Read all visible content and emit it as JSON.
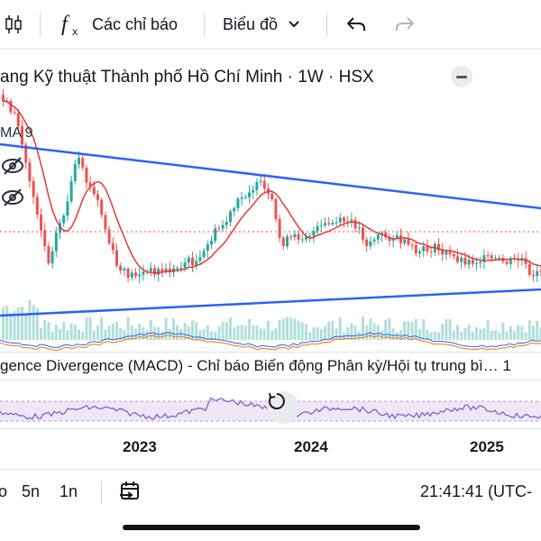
{
  "toolbar": {
    "indicators_label": "Các chỉ báo",
    "chart_type_label": "Biểu đồ"
  },
  "legend": {
    "title": "ang Kỹ thuật Thành phố Hồ Chí Minh · 1W · HSX",
    "ma_label": "MA 9"
  },
  "macd": {
    "label": "gence Divergence (MACD) - Chỉ báo Biến động Phân kỳ/Hội tụ trung bì… 1"
  },
  "time_axis": {
    "years": [
      "2023",
      "2024",
      "2025"
    ]
  },
  "bottom_bar": {
    "ranges": [
      "o",
      "5n",
      "1n"
    ],
    "clock": "21:41:41 (UTC-"
  },
  "colors": {
    "up": "#26a69a",
    "down": "#ef5350",
    "ma": "#e53935",
    "trendline": "#2962ff",
    "volume": "#b2dfdb",
    "rsi": "#7e57c2",
    "macd_line": "#2962ff",
    "signal_line": "#ff6d00"
  },
  "icons": {
    "candles": "candlestick-icon",
    "fx": "function-icon",
    "undo": "undo-icon",
    "redo": "redo-icon",
    "replay": "replay-icon",
    "eye": "eye-slash-icon",
    "reset": "reset-icon"
  }
}
